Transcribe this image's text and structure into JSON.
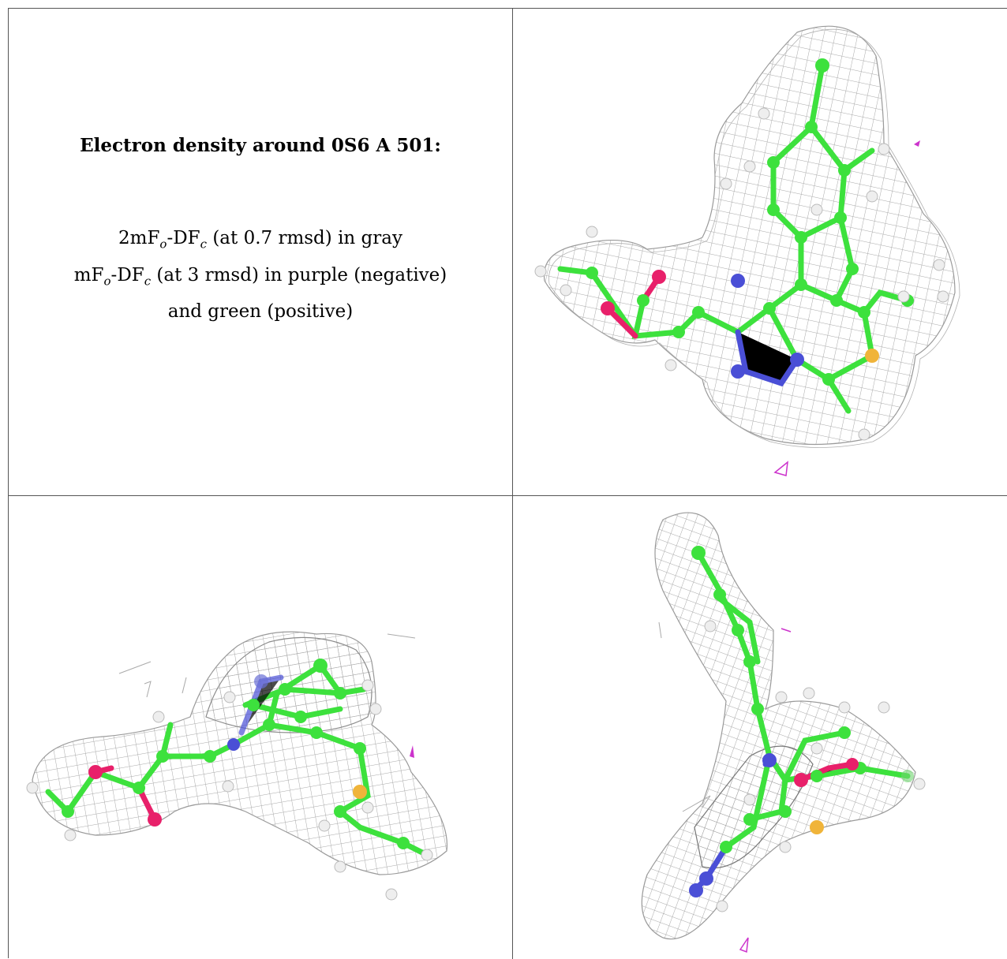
{
  "caption": {
    "title": "Electron density around 0S6 A 501:",
    "line1": {
      "prefix": "2mF",
      "sub1": "o",
      "mid": "-DF",
      "sub2": "c",
      "suffix": " (at 0.7 rmsd) in gray"
    },
    "line2": {
      "prefix": "mF",
      "sub1": "o",
      "mid": "-DF",
      "sub2": "c",
      "suffix": " (at 3 rmsd) in purple (negative)"
    },
    "line3": "and green (positive)"
  },
  "colors": {
    "carbon": "#3de13d",
    "nitrogen": "#4a4fd6",
    "oxygen": "#e8206a",
    "sulfur": "#f0b43a",
    "hydrogen": "#f2f2f2",
    "mesh_gray": "#9a9a9a",
    "mesh_purple": "#cc33cc"
  },
  "views": [
    {
      "id": "view-top-right",
      "description_icon": "molecule-density-view-1"
    },
    {
      "id": "view-bottom-left",
      "description_icon": "molecule-density-view-2"
    },
    {
      "id": "view-bottom-right",
      "description_icon": "molecule-density-view-3"
    }
  ]
}
